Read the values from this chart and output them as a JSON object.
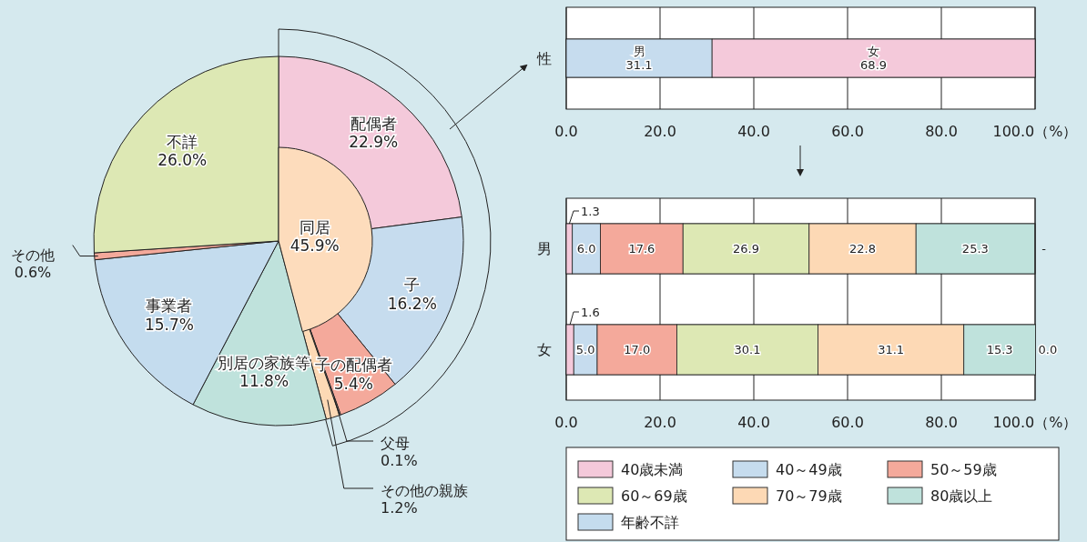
{
  "chart_data": [
    {
      "type": "pie",
      "categories": [
        "配偶者",
        "子",
        "子の配偶者",
        "父母",
        "その他の親族",
        "別居の家族等",
        "事業者",
        "その他",
        "不詳"
      ],
      "values": [
        22.9,
        16.2,
        5.4,
        0.1,
        1.2,
        11.8,
        15.7,
        0.6,
        26.0
      ],
      "colors": [
        "#f4c9da",
        "#c6dcee",
        "#f4a99b",
        "#f4c9da",
        "#fdd9b5",
        "#bfe2dc",
        "#c4dcee",
        "#f4a99b",
        "#dde8b4"
      ],
      "value_labels": [
        "22.9%",
        "16.2%",
        "5.4%",
        "0.1%",
        "1.2%",
        "11.8%",
        "15.7%",
        "0.6%",
        "26.0%"
      ]
    },
    {
      "type": "other",
      "categories": [
        "同居"
      ],
      "values": [
        45.9
      ],
      "colors": [
        "#fddcbc"
      ],
      "value_labels": [
        "45.9%"
      ]
    },
    {
      "type": "bar",
      "orientation": "horizontal",
      "stacked": true,
      "categories": [
        "性"
      ],
      "xlim": [
        0,
        100
      ],
      "xticks": [
        {
          "value": 0,
          "label": "0.0"
        },
        {
          "value": 20,
          "label": "20.0"
        },
        {
          "value": 40,
          "label": "40.0"
        },
        {
          "value": 60,
          "label": "60.0"
        },
        {
          "value": 80,
          "label": "80.0"
        },
        {
          "value": 100,
          "label": "100.0（%）"
        }
      ],
      "grid": "x",
      "series": [
        {
          "name": "男",
          "color": "#c6dcee",
          "values": [
            31.1
          ],
          "value_labels": [
            "31.1"
          ]
        },
        {
          "name": "女",
          "color": "#f4c9da",
          "values": [
            68.9
          ],
          "value_labels": [
            "68.9"
          ]
        }
      ]
    },
    {
      "type": "bar",
      "orientation": "horizontal",
      "stacked": true,
      "categories": [
        "男",
        "女"
      ],
      "xlim": [
        0,
        100
      ],
      "xticks": [
        {
          "value": 0,
          "label": "0.0"
        },
        {
          "value": 20,
          "label": "20.0"
        },
        {
          "value": 40,
          "label": "40.0"
        },
        {
          "value": 60,
          "label": "60.0"
        },
        {
          "value": 80,
          "label": "80.0"
        },
        {
          "value": 100,
          "label": "100.0（%）"
        }
      ],
      "grid": "x",
      "legend": "bottom",
      "series": [
        {
          "name": "40歳未満",
          "color": "#f4c9da",
          "values": [
            1.3,
            1.6
          ],
          "value_labels": [
            "1.3",
            "1.6"
          ]
        },
        {
          "name": "40～49歳",
          "color": "#c6dcee",
          "values": [
            6.0,
            5.0
          ],
          "value_labels": [
            "6.0",
            "5.0"
          ]
        },
        {
          "name": "50～59歳",
          "color": "#f4a99b",
          "values": [
            17.6,
            17.0
          ],
          "value_labels": [
            "17.6",
            "17.0"
          ]
        },
        {
          "name": "60～69歳",
          "color": "#dde8b4",
          "values": [
            26.9,
            30.1
          ],
          "value_labels": [
            "26.9",
            "30.1"
          ]
        },
        {
          "name": "70～79歳",
          "color": "#fdd9b5",
          "values": [
            22.8,
            31.1
          ],
          "value_labels": [
            "22.8",
            "31.1"
          ]
        },
        {
          "name": "80歳以上",
          "color": "#bfe2dc",
          "values": [
            25.3,
            15.3
          ],
          "value_labels": [
            "25.3",
            "15.3"
          ]
        },
        {
          "name": "年齢不詳",
          "color": "#c4dcee",
          "values": [
            null,
            0.0
          ],
          "value_labels": [
            "-",
            "0.0"
          ]
        }
      ]
    }
  ]
}
